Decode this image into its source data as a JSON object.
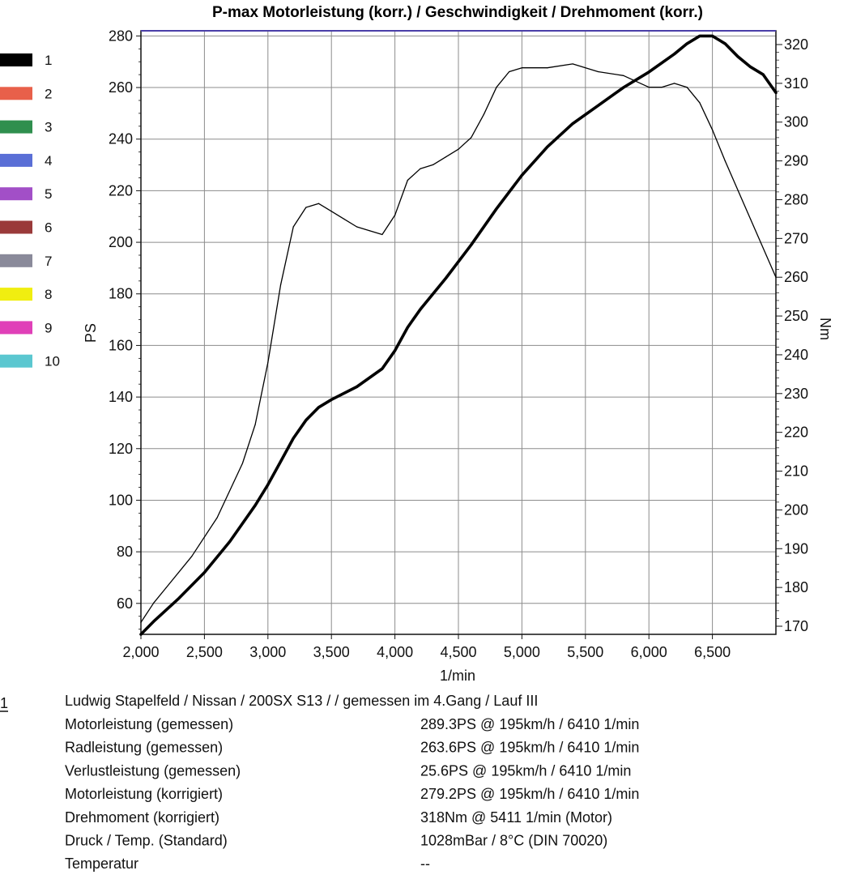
{
  "chart_data": {
    "type": "line",
    "title": "P-max Motorleistung (korr.) / Geschwindigkeit / Drehmoment (korr.)",
    "xlabel": "1/min",
    "ylabel_left": "PS",
    "ylabel_right": "Nm",
    "xlim": [
      2000,
      7000
    ],
    "ylim_left": [
      48,
      282
    ],
    "ylim_right": [
      170,
      320
    ],
    "x_ticks": [
      2000,
      2500,
      3000,
      3500,
      4000,
      4500,
      5000,
      5500,
      6000,
      6500
    ],
    "x_tick_labels": [
      "2,000",
      "2,500",
      "3,000",
      "3,500",
      "4,000",
      "4,500",
      "5,000",
      "5,500",
      "6,000",
      "6,500"
    ],
    "y_ticks_left": [
      60,
      80,
      100,
      120,
      140,
      160,
      180,
      200,
      220,
      240,
      260,
      280
    ],
    "y_ticks_right": [
      170,
      180,
      190,
      200,
      210,
      220,
      230,
      240,
      250,
      260,
      270,
      280,
      290,
      300,
      310,
      320
    ],
    "grid": true,
    "legend": {
      "placement": "left",
      "entries": [
        {
          "label": "1",
          "color": "#000000"
        },
        {
          "label": "2",
          "color": "#e8604a"
        },
        {
          "label": "3",
          "color": "#2f8f4e"
        },
        {
          "label": "4",
          "color": "#5a6fd6"
        },
        {
          "label": "5",
          "color": "#a24fc7"
        },
        {
          "label": "6",
          "color": "#9a3a3a"
        },
        {
          "label": "7",
          "color": "#8a8a9a"
        },
        {
          "label": "8",
          "color": "#f0ee10"
        },
        {
          "label": "9",
          "color": "#e040b8"
        },
        {
          "label": "10",
          "color": "#5bc7d0"
        }
      ]
    },
    "series": [
      {
        "axis": "left",
        "color": "#000000",
        "line_weight": "bold",
        "x": [
          2000,
          2100,
          2300,
          2500,
          2700,
          2900,
          3000,
          3100,
          3200,
          3300,
          3400,
          3500,
          3700,
          3900,
          4000,
          4100,
          4200,
          4400,
          4600,
          4800,
          5000,
          5200,
          5400,
          5600,
          5800,
          6000,
          6200,
          6300,
          6400,
          6500,
          6600,
          6700,
          6800,
          6900,
          7000
        ],
        "values": [
          48,
          53,
          62,
          72,
          84,
          98,
          106,
          115,
          124,
          131,
          136,
          139,
          144,
          151,
          158,
          167,
          174,
          186,
          199,
          213,
          226,
          237,
          246,
          253,
          260,
          266,
          273,
          277,
          280,
          280,
          277,
          272,
          268,
          265,
          258
        ]
      },
      {
        "axis": "right",
        "color": "#000000",
        "line_weight": "thin",
        "x": [
          2000,
          2100,
          2200,
          2400,
          2600,
          2800,
          2900,
          3000,
          3100,
          3200,
          3300,
          3400,
          3500,
          3600,
          3700,
          3800,
          3900,
          4000,
          4100,
          4200,
          4300,
          4400,
          4500,
          4600,
          4700,
          4800,
          4900,
          5000,
          5200,
          5400,
          5600,
          5800,
          6000,
          6100,
          6200,
          6300,
          6400,
          6500,
          6600,
          6800,
          7000
        ],
        "values": [
          171,
          176,
          180,
          188,
          198,
          212,
          222,
          238,
          258,
          273,
          278,
          279,
          277,
          275,
          273,
          272,
          271,
          276,
          285,
          288,
          289,
          291,
          293,
          296,
          302,
          309,
          313,
          314,
          314,
          315,
          313,
          312,
          309,
          309,
          310,
          309,
          305,
          298,
          290,
          275,
          260
        ]
      }
    ]
  },
  "info": {
    "run_label": "1",
    "header": "Ludwig Stapelfeld / Nissan / 200SX S13 /  / gemessen im 4.Gang / Lauf III",
    "rows": [
      {
        "label": "Motorleistung (gemessen)",
        "value": "289.3PS @ 195km/h / 6410 1/min"
      },
      {
        "label": "Radleistung (gemessen)",
        "value": "263.6PS @ 195km/h / 6410 1/min"
      },
      {
        "label": "Verlustleistung (gemessen)",
        "value": "25.6PS @ 195km/h / 6410 1/min"
      },
      {
        "label": "Motorleistung (korrigiert)",
        "value": "279.2PS @ 195km/h / 6410 1/min"
      },
      {
        "label": "Drehmoment (korrigiert)",
        "value": "318Nm @ 5411 1/min (Motor)"
      },
      {
        "label": "Druck / Temp. (Standard)",
        "value": "1028mBar / 8°C  (DIN 70020)"
      },
      {
        "label": "Temperatur",
        "value": "--"
      }
    ]
  }
}
